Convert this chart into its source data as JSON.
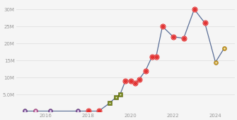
{
  "points": [
    [
      2015.0,
      0.2,
      "heart_purple"
    ],
    [
      2015.5,
      0.2,
      "heart_pink"
    ],
    [
      2016.2,
      0.2,
      "heart_purple"
    ],
    [
      2017.5,
      0.2,
      "heart_purple"
    ],
    [
      2018.0,
      0.2,
      "circle_red"
    ],
    [
      2018.5,
      0.2,
      "circle_red"
    ],
    [
      2019.0,
      2.5,
      "shield_olive"
    ],
    [
      2019.3,
      4.2,
      "shield_olive"
    ],
    [
      2019.5,
      5.0,
      "shield_olive"
    ],
    [
      2019.75,
      9.0,
      "circle_red"
    ],
    [
      2020.0,
      9.0,
      "circle_red"
    ],
    [
      2020.2,
      8.5,
      "circle_red"
    ],
    [
      2020.4,
      9.5,
      "circle_red"
    ],
    [
      2020.7,
      12.0,
      "circle_red"
    ],
    [
      2021.0,
      16.0,
      "circle_red"
    ],
    [
      2021.2,
      16.0,
      "circle_red"
    ],
    [
      2021.5,
      25.0,
      "circle_red"
    ],
    [
      2022.0,
      22.0,
      "circle_red"
    ],
    [
      2022.5,
      21.5,
      "circle_red"
    ],
    [
      2023.0,
      30.0,
      "circle_red"
    ],
    [
      2023.5,
      26.0,
      "circle_red"
    ],
    [
      2024.0,
      14.5,
      "circle_gold"
    ],
    [
      2024.4,
      18.5,
      "circle_gold"
    ]
  ],
  "line_color": "#5a6e96",
  "marker_configs": {
    "heart_purple": {
      "fc": "#8050a0",
      "ec": "#503060",
      "ms": 3.5
    },
    "heart_pink": {
      "fc": "#c060a0",
      "ec": "#803060",
      "ms": 3.5
    },
    "circle_red": {
      "fc": "#e83030",
      "ec": "#c01010",
      "ms": 3.5
    },
    "shield_olive": {
      "fc": "#7a8a20",
      "ec": "#505810",
      "ms": 3.5
    },
    "circle_gold": {
      "fc": "#c8a030",
      "ec": "#a07010",
      "ms": 3.5
    }
  },
  "background_color": "#f5f5f5",
  "grid_color": "#dddddd",
  "ylim": [
    0,
    32
  ],
  "xlim": [
    2014.6,
    2024.9
  ],
  "yticks": [
    5,
    10,
    15,
    20,
    25,
    30
  ],
  "ytick_labels": [
    "5.0M",
    "10M",
    "15M",
    "20M",
    "25M",
    "30M"
  ],
  "xticks": [
    2016,
    2018,
    2020,
    2022,
    2024
  ],
  "xtick_labels": [
    "2016",
    "2018",
    "2020",
    "2022",
    "2024"
  ],
  "tick_fontsize": 5.0,
  "tick_color": "#999999",
  "line_width": 0.9
}
